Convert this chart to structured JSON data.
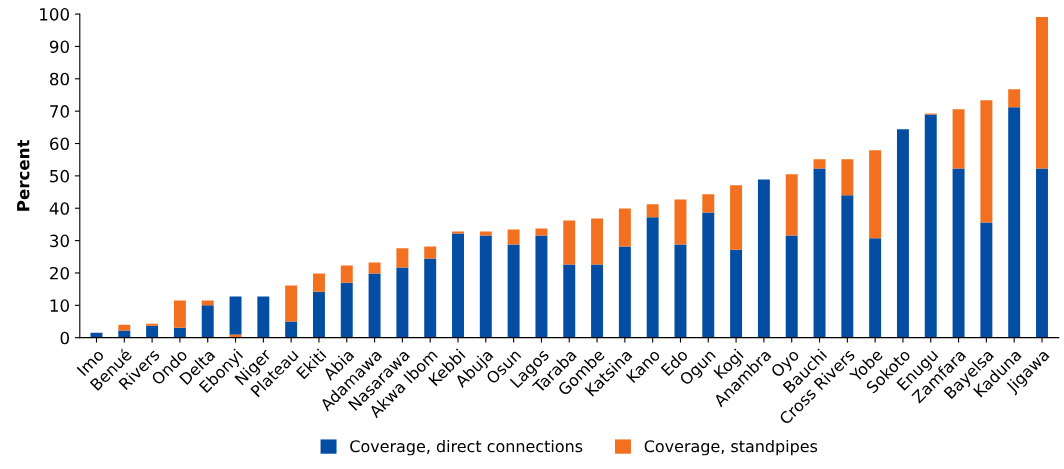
{
  "chart_data": {
    "type": "bar",
    "ylabel": "Percent",
    "categories": [
      "Imo",
      "Benué",
      "Rivers",
      "Ondo",
      "Delta",
      "Ebonyi",
      "Niger",
      "Plateau",
      "Ekiti",
      "Abia",
      "Adamawa",
      "Nasarawa",
      "Akwa Ibom",
      "Kebbi",
      "Abuja",
      "Osun",
      "Lagos",
      "Taraba",
      "Gombe",
      "Katsina",
      "Kano",
      "Edo",
      "Ogun",
      "Kogi",
      "Anambra",
      "Oyo",
      "Bauchi",
      "Cross Rivers",
      "Yobe",
      "Sokoto",
      "Enugu",
      "Zamfara",
      "Bayelsa",
      "Kaduna",
      "Jigawa"
    ],
    "series": [
      {
        "name": "Coverage, direct connections",
        "color": "#034ea2",
        "values": [
          1.5,
          2.2,
          3.7,
          3.1,
          10.0,
          11.8,
          12.7,
          5.0,
          14.2,
          17.0,
          19.8,
          21.7,
          24.5,
          32.2,
          31.6,
          28.8,
          31.6,
          22.6,
          22.6,
          28.2,
          37.2,
          28.8,
          38.7,
          27.2,
          48.9,
          31.6,
          52.3,
          44.0,
          30.7,
          64.4,
          69.0,
          52.3,
          35.6,
          71.2,
          52.3
        ],
        "base": [
          0,
          0,
          0,
          0,
          0,
          0.9,
          0,
          0,
          0,
          0,
          0,
          0,
          0,
          0,
          0,
          0,
          0,
          0,
          0,
          0,
          0,
          0,
          0,
          0,
          0,
          0,
          0,
          0,
          0,
          0,
          0,
          0,
          0,
          0,
          0
        ]
      },
      {
        "name": "Coverage, standpipes",
        "color": "#f37021",
        "values": [
          null,
          1.8,
          0.6,
          8.4,
          1.5,
          0.9,
          null,
          11.1,
          5.6,
          5.3,
          3.4,
          5.9,
          3.7,
          0.6,
          1.2,
          4.6,
          2.1,
          13.6,
          14.2,
          11.7,
          4.0,
          13.9,
          5.6,
          19.9,
          null,
          18.9,
          2.8,
          11.1,
          27.2,
          null,
          0.3,
          18.3,
          37.8,
          5.6,
          46.8
        ],
        "base": [
          null,
          2.2,
          3.7,
          3.1,
          10.0,
          0,
          null,
          5.0,
          14.2,
          17.0,
          19.8,
          21.7,
          24.5,
          32.2,
          31.6,
          28.8,
          31.6,
          22.6,
          22.6,
          28.2,
          37.2,
          28.8,
          38.7,
          27.2,
          null,
          31.6,
          52.3,
          44.0,
          30.7,
          null,
          69.0,
          52.3,
          35.6,
          71.2,
          52.3
        ]
      }
    ],
    "ylim": [
      0,
      100
    ],
    "yticks": [
      0,
      10,
      20,
      30,
      40,
      50,
      60,
      70,
      80,
      90,
      100
    ],
    "grid": false,
    "legend": "bottom"
  }
}
